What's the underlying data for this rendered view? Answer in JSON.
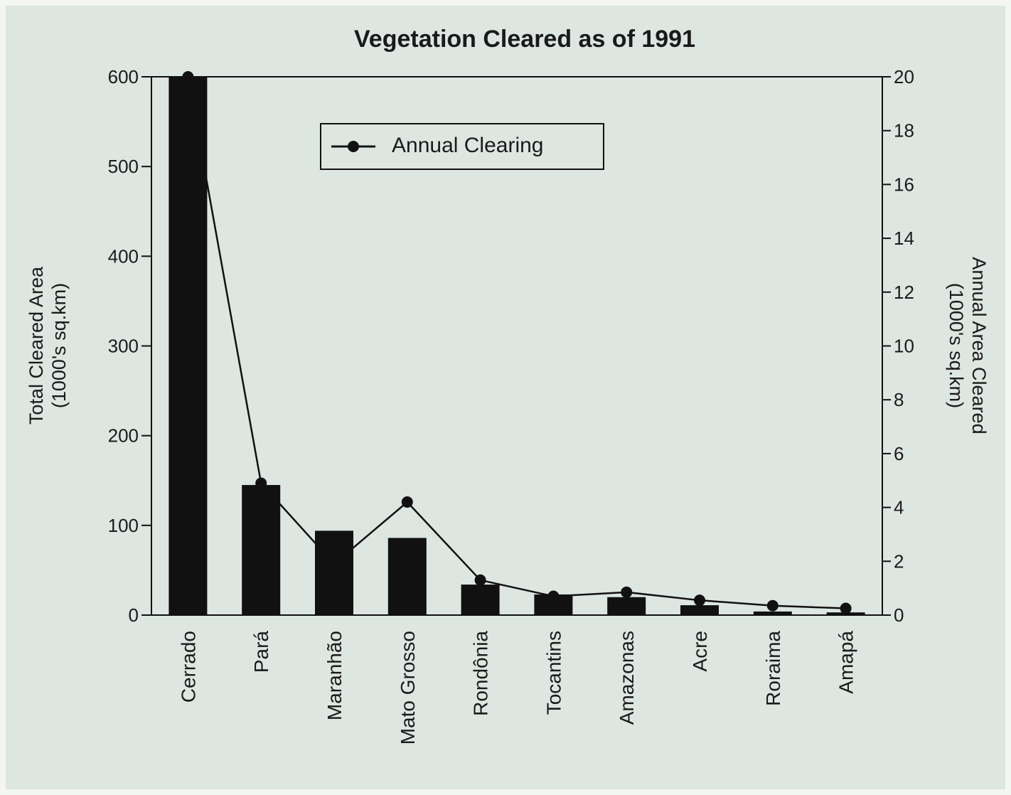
{
  "chart_data": {
    "type": "bar",
    "title": "Vegetation Cleared as of 1991",
    "categories": [
      "Cerrado",
      "Pará",
      "Maranhão",
      "Mato Grosso",
      "Rondônia",
      "Tocantins",
      "Amazonas",
      "Acre",
      "Roraima",
      "Amapá"
    ],
    "ylabel_left_line1": "Total Cleared Area",
    "ylabel_left_line2": "(1000's sq.km)",
    "ylabel_right_line1": "Annual Area Cleared",
    "ylabel_right_line2": "(1000's sq.km)",
    "ylim_left": [
      0,
      600
    ],
    "ylim_right": [
      0,
      20
    ],
    "yticks_left": [
      "0",
      "100",
      "200",
      "300",
      "400",
      "500",
      "600"
    ],
    "yticks_right": [
      "0",
      "2",
      "4",
      "6",
      "8",
      "10",
      "12",
      "14",
      "16",
      "18",
      "20"
    ],
    "grid": false,
    "legend_position": "top-center",
    "series": [
      {
        "kind": "bar",
        "axis": "left",
        "values": [
          600,
          145,
          94,
          86,
          34,
          23,
          20,
          11,
          4,
          3
        ],
        "color": "#111111"
      },
      {
        "kind": "line",
        "axis": "right",
        "name": "Annual Clearing",
        "values": [
          20,
          4.9,
          1.9,
          4.2,
          1.3,
          0.7,
          0.85,
          0.55,
          0.35,
          0.25
        ],
        "color": "#111111"
      }
    ]
  }
}
